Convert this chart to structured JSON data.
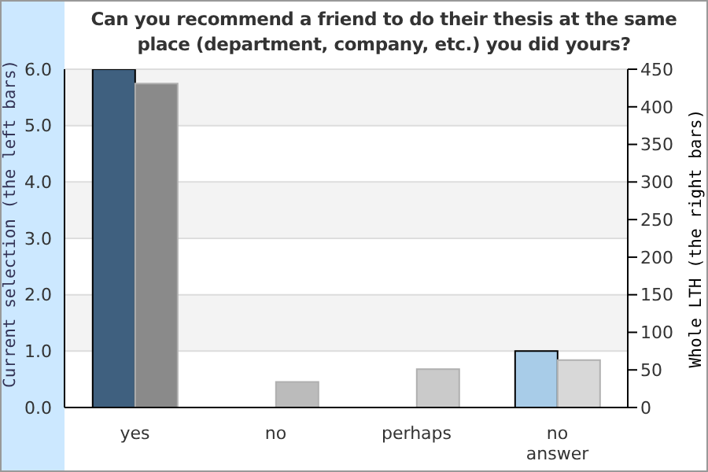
{
  "chart_data": {
    "type": "bar",
    "title": "Can you recommend a friend to do their thesis at the same place (department, company, etc.) you did yours?",
    "ylabel": "Current selection (the left bars)",
    "y2label": "Whole LTH (the right bars)",
    "categories": [
      "yes",
      "no",
      "perhaps",
      "no answer"
    ],
    "series": [
      {
        "colors": [
          "#3f607f",
          "#3f607f",
          "#3f607f",
          "#a8cce8"
        ],
        "values": [
          6,
          0,
          0,
          1
        ]
      },
      {
        "colors": [
          "#8a8a8a",
          "#bbbbbb",
          "#cacaca",
          "#d8d8d8"
        ],
        "values": [
          431,
          34,
          51,
          63
        ],
        "axis": "y2"
      }
    ],
    "ylim": [
      0,
      6
    ],
    "yticks": [
      {
        "value": 0,
        "label": "0.0"
      },
      {
        "value": 1,
        "label": "1.0"
      },
      {
        "value": 2,
        "label": "2.0"
      },
      {
        "value": 3,
        "label": "3.0"
      },
      {
        "value": 4,
        "label": "4.0"
      },
      {
        "value": 5,
        "label": "5.0"
      },
      {
        "value": 6,
        "label": "6.0"
      }
    ],
    "y2lim": [
      0,
      450
    ],
    "y2ticks": [
      0,
      50,
      100,
      150,
      200,
      250,
      300,
      350,
      400,
      450
    ],
    "grid": "y"
  }
}
